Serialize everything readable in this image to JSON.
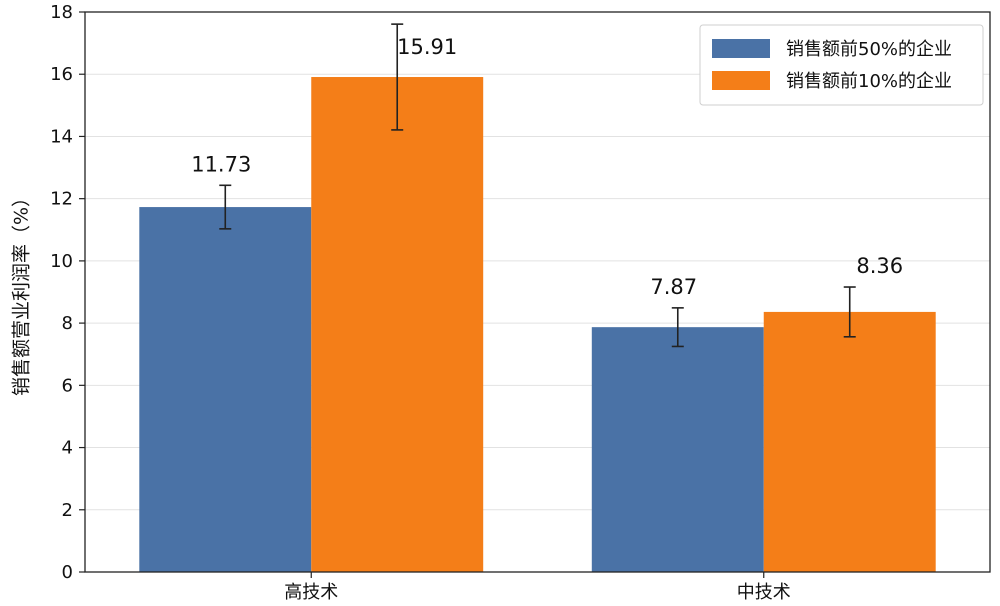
{
  "chart_data": {
    "type": "bar",
    "title": "",
    "xlabel": "",
    "ylabel": "销售额营业利润率（%）",
    "ylim": [
      0,
      18
    ],
    "yticks": [
      0,
      2,
      4,
      6,
      8,
      10,
      12,
      14,
      16,
      18
    ],
    "grid": true,
    "legend_position": "top-right",
    "categories": [
      "高技术",
      "中技术"
    ],
    "series": [
      {
        "name": "销售额前50%的企业",
        "color": "#4a72a6",
        "values": [
          11.73,
          7.87
        ],
        "labels": [
          "11.73",
          "7.87"
        ],
        "error": [
          0.7,
          0.62
        ]
      },
      {
        "name": "销售额前10%的企业",
        "color": "#f47e18",
        "values": [
          15.91,
          8.36
        ],
        "labels": [
          "15.91",
          "8.36"
        ],
        "error": [
          1.7,
          0.8
        ]
      }
    ]
  }
}
